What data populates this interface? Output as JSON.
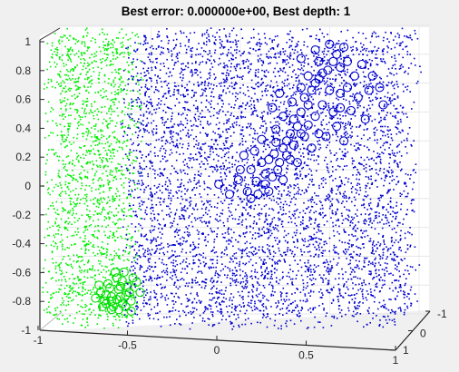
{
  "figure": {
    "background": "#f0f0f0",
    "axes_color": "#ffffff"
  },
  "chart_data": {
    "type": "scatter",
    "projection": "3d",
    "title": "Best error: 0.000000e+00, Best depth: 1",
    "xlabel": "",
    "ylabel": "",
    "zlabel": "",
    "xlim": [
      -1,
      1
    ],
    "ylim": [
      -1,
      1
    ],
    "zlim": [
      -1,
      1
    ],
    "x_ticks": [
      "-1",
      "-0.5",
      "0",
      "0.5",
      "1"
    ],
    "y_ticks": [
      "-1",
      "0",
      "1"
    ],
    "z_ticks": [
      "-1",
      "-0.8",
      "-0.6",
      "-0.4",
      "-0.2",
      "0",
      "0.2",
      "0.4",
      "0.6",
      "0.8",
      "1"
    ],
    "grid": true,
    "series": [
      {
        "color": "#00ee00",
        "marker": "dot",
        "description": "uniform point cloud, x in [-1, -0.55]",
        "x_range": [
          -1,
          -0.55
        ],
        "y_range": [
          -1,
          1
        ],
        "z_range": [
          -1,
          1
        ]
      },
      {
        "color": "#0000cc",
        "marker": "dot",
        "description": "uniform point cloud, x in [-0.55, 1]",
        "x_range": [
          -0.55,
          1
        ],
        "y_range": [
          -1,
          1
        ],
        "z_range": [
          -1,
          1
        ]
      },
      {
        "color": "#00dd00",
        "marker": "circle",
        "points": [
          [
            -0.69,
            -0.88
          ],
          [
            -0.66,
            -0.83
          ],
          [
            -0.63,
            -0.85
          ],
          [
            -0.72,
            -0.8
          ],
          [
            -0.6,
            -0.88
          ],
          [
            -0.67,
            -0.77
          ],
          [
            -0.62,
            -0.78
          ],
          [
            -0.58,
            -0.82
          ],
          [
            -0.7,
            -0.86
          ],
          [
            -0.65,
            -0.9
          ],
          [
            -0.57,
            -0.76
          ],
          [
            -0.55,
            -0.86
          ],
          [
            -0.6,
            -0.72
          ],
          [
            -0.66,
            -0.92
          ],
          [
            -0.73,
            -0.75
          ],
          [
            -0.63,
            -0.7
          ],
          [
            -0.56,
            -0.8
          ],
          [
            -0.68,
            -0.74
          ],
          [
            -0.61,
            -0.83
          ],
          [
            -0.71,
            -0.9
          ],
          [
            -0.52,
            -0.73
          ],
          [
            -0.5,
            -0.8
          ],
          [
            -0.75,
            -0.84
          ],
          [
            -0.58,
            -0.9
          ],
          [
            -0.64,
            -0.66
          ],
          [
            -0.62,
            -0.92
          ],
          [
            -0.55,
            -0.93
          ],
          [
            -0.69,
            -0.82
          ],
          [
            -0.59,
            -0.66
          ],
          [
            -0.54,
            -0.7
          ],
          [
            -0.66,
            -0.86
          ],
          [
            -0.61,
            -0.76
          ]
        ]
      },
      {
        "color": "#0000cc",
        "marker": "circle",
        "points": [
          [
            -0.06,
            -0.05
          ],
          [
            0.0,
            -0.12
          ],
          [
            0.06,
            0.05
          ],
          [
            0.1,
            -0.1
          ],
          [
            0.12,
            0.05
          ],
          [
            0.15,
            -0.03
          ],
          [
            0.18,
            0.1
          ],
          [
            0.2,
            0.02
          ],
          [
            0.22,
            0.12
          ],
          [
            0.25,
            0.16
          ],
          [
            0.27,
            0.05
          ],
          [
            0.3,
            0.2
          ],
          [
            0.32,
            0.25
          ],
          [
            0.34,
            0.3
          ],
          [
            0.36,
            0.4
          ],
          [
            0.38,
            0.35
          ],
          [
            0.4,
            0.45
          ],
          [
            0.42,
            0.55
          ],
          [
            0.44,
            0.5
          ],
          [
            0.46,
            0.6
          ],
          [
            0.48,
            0.65
          ],
          [
            0.5,
            0.68
          ],
          [
            0.52,
            0.72
          ],
          [
            0.55,
            0.74
          ],
          [
            0.58,
            0.8
          ],
          [
            0.6,
            0.85
          ],
          [
            0.62,
            0.76
          ],
          [
            0.64,
            0.9
          ],
          [
            0.56,
            0.6
          ],
          [
            0.52,
            0.5
          ],
          [
            0.48,
            0.42
          ],
          [
            0.44,
            0.36
          ],
          [
            0.4,
            0.3
          ],
          [
            0.36,
            0.22
          ],
          [
            0.32,
            0.15
          ],
          [
            0.28,
            0.1
          ],
          [
            0.24,
            0.0
          ],
          [
            0.2,
            -0.05
          ],
          [
            0.16,
            -0.12
          ],
          [
            0.12,
            -0.15
          ],
          [
            0.08,
            0.15
          ],
          [
            0.14,
            0.18
          ],
          [
            0.26,
            0.24
          ],
          [
            0.34,
            0.12
          ],
          [
            0.42,
            0.28
          ],
          [
            0.5,
            0.3
          ],
          [
            0.58,
            0.45
          ],
          [
            0.62,
            0.58
          ],
          [
            0.66,
            0.62
          ],
          [
            0.7,
            0.7
          ],
          [
            0.72,
            0.55
          ],
          [
            0.68,
            0.46
          ],
          [
            0.6,
            0.35
          ],
          [
            0.54,
            0.28
          ],
          [
            0.46,
            0.2
          ],
          [
            0.38,
            0.1
          ],
          [
            0.3,
            -0.02
          ],
          [
            0.22,
            -0.1
          ],
          [
            0.78,
            0.6
          ],
          [
            0.8,
            0.7
          ],
          [
            0.74,
            0.78
          ],
          [
            0.66,
            0.8
          ],
          [
            0.5,
            0.8
          ],
          [
            0.44,
            0.7
          ],
          [
            0.4,
            0.62
          ],
          [
            0.35,
            0.52
          ],
          [
            0.3,
            0.42
          ],
          [
            0.26,
            0.33
          ],
          [
            0.18,
            0.26
          ],
          [
            0.05,
            -0.02
          ],
          [
            0.56,
            0.92
          ],
          [
            0.48,
            0.88
          ],
          [
            0.84,
            0.62
          ],
          [
            0.86,
            0.5
          ],
          [
            0.76,
            0.4
          ],
          [
            0.64,
            0.25
          ],
          [
            0.28,
            0.58
          ],
          [
            0.24,
            0.48
          ],
          [
            0.4,
            0.82
          ],
          [
            0.62,
            0.48
          ]
        ]
      }
    ]
  }
}
